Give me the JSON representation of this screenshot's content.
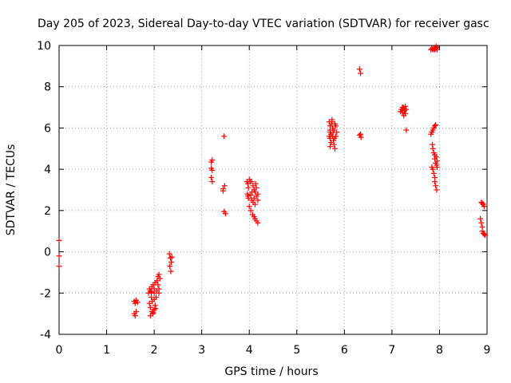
{
  "chart_data": {
    "type": "scatter",
    "title": "Day 205 of 2023, Sidereal Day-to-day VTEC variation (SDTVAR) for receiver gasc",
    "xlabel": "GPS time / hours",
    "ylabel": "SDTVAR / TECUs",
    "xlim": [
      0,
      9
    ],
    "ylim": [
      -4,
      10
    ],
    "xticks": [
      "0",
      "1",
      "2",
      "3",
      "4",
      "5",
      "6",
      "7",
      "8",
      "9"
    ],
    "yticks": [
      "-4",
      "-2",
      "0",
      "2",
      "4",
      "6",
      "8",
      "10"
    ],
    "grid": true,
    "marker": "+",
    "series": [
      {
        "name": "SDTVAR",
        "color": "#ff0000",
        "points": [
          [
            0.0,
            0.55
          ],
          [
            0.0,
            -0.2
          ],
          [
            0.0,
            -0.7
          ],
          [
            1.58,
            -2.4
          ],
          [
            1.6,
            -2.5
          ],
          [
            1.62,
            -2.35
          ],
          [
            1.65,
            -2.45
          ],
          [
            1.58,
            -3.0
          ],
          [
            1.6,
            -3.1
          ],
          [
            1.62,
            -2.9
          ],
          [
            1.88,
            -2.0
          ],
          [
            1.9,
            -1.8
          ],
          [
            1.92,
            -1.9
          ],
          [
            1.94,
            -2.2
          ],
          [
            1.9,
            -2.5
          ],
          [
            1.92,
            -2.7
          ],
          [
            1.95,
            -2.9
          ],
          [
            1.97,
            -3.0
          ],
          [
            1.92,
            -3.1
          ],
          [
            1.95,
            -1.7
          ],
          [
            1.98,
            -1.6
          ],
          [
            2.0,
            -1.8
          ],
          [
            2.0,
            -2.0
          ],
          [
            2.02,
            -1.5
          ],
          [
            2.0,
            -2.3
          ],
          [
            2.02,
            -2.6
          ],
          [
            2.0,
            -2.8
          ],
          [
            1.98,
            -2.95
          ],
          [
            2.04,
            -2.2
          ],
          [
            2.05,
            -1.9
          ],
          [
            2.06,
            -1.4
          ],
          [
            2.08,
            -1.2
          ],
          [
            2.08,
            -1.6
          ],
          [
            2.1,
            -1.8
          ],
          [
            2.1,
            -2.0
          ],
          [
            2.1,
            -1.1
          ],
          [
            2.12,
            -1.3
          ],
          [
            1.96,
            -2.4
          ],
          [
            1.94,
            -1.95
          ],
          [
            2.03,
            -2.75
          ],
          [
            2.32,
            -0.1
          ],
          [
            2.34,
            -0.3
          ],
          [
            2.36,
            -0.5
          ],
          [
            2.33,
            -0.7
          ],
          [
            2.35,
            -0.95
          ],
          [
            2.37,
            -0.25
          ],
          [
            3.2,
            4.35
          ],
          [
            3.22,
            4.45
          ],
          [
            3.2,
            4.05
          ],
          [
            3.22,
            3.95
          ],
          [
            3.2,
            3.6
          ],
          [
            3.22,
            3.4
          ],
          [
            3.45,
            3.05
          ],
          [
            3.48,
            3.2
          ],
          [
            3.45,
            2.95
          ],
          [
            3.47,
            1.95
          ],
          [
            3.5,
            1.85
          ],
          [
            3.47,
            5.6
          ],
          [
            3.95,
            3.4
          ],
          [
            3.97,
            3.3
          ],
          [
            3.98,
            3.1
          ],
          [
            4.0,
            3.5
          ],
          [
            4.02,
            3.4
          ],
          [
            3.96,
            2.8
          ],
          [
            3.98,
            2.6
          ],
          [
            4.0,
            2.2
          ],
          [
            4.03,
            2.0
          ],
          [
            3.97,
            2.7
          ],
          [
            4.05,
            3.4
          ],
          [
            4.08,
            3.2
          ],
          [
            4.1,
            3.0
          ],
          [
            4.12,
            2.9
          ],
          [
            4.15,
            2.7
          ],
          [
            4.05,
            2.5
          ],
          [
            4.08,
            2.4
          ],
          [
            4.1,
            2.6
          ],
          [
            4.06,
            2.9
          ],
          [
            4.13,
            3.3
          ],
          [
            4.15,
            3.1
          ],
          [
            4.18,
            2.8
          ],
          [
            4.18,
            2.5
          ],
          [
            4.12,
            2.3
          ],
          [
            4.07,
            1.8
          ],
          [
            4.1,
            1.7
          ],
          [
            4.12,
            1.6
          ],
          [
            4.15,
            1.5
          ],
          [
            4.18,
            1.4
          ],
          [
            4.03,
            2.75
          ],
          [
            5.68,
            6.3
          ],
          [
            5.7,
            6.1
          ],
          [
            5.7,
            5.9
          ],
          [
            5.72,
            5.7
          ],
          [
            5.7,
            5.5
          ],
          [
            5.72,
            5.3
          ],
          [
            5.7,
            5.1
          ],
          [
            5.68,
            5.6
          ],
          [
            5.7,
            5.8
          ],
          [
            5.73,
            6.2
          ],
          [
            5.74,
            6.3
          ],
          [
            5.75,
            6.0
          ],
          [
            5.76,
            5.8
          ],
          [
            5.75,
            5.6
          ],
          [
            5.77,
            5.4
          ],
          [
            5.78,
            5.2
          ],
          [
            5.8,
            5.0
          ],
          [
            5.78,
            5.9
          ],
          [
            5.8,
            6.2
          ],
          [
            5.82,
            6.1
          ],
          [
            5.84,
            5.8
          ],
          [
            5.82,
            5.6
          ],
          [
            5.74,
            6.4
          ],
          [
            5.79,
            5.5
          ],
          [
            6.32,
            8.85
          ],
          [
            6.34,
            8.65
          ],
          [
            6.32,
            5.65
          ],
          [
            6.35,
            5.55
          ],
          [
            6.34,
            5.7
          ],
          [
            7.18,
            6.8
          ],
          [
            7.2,
            6.9
          ],
          [
            7.22,
            6.75
          ],
          [
            7.24,
            7.0
          ],
          [
            7.26,
            6.85
          ],
          [
            7.28,
            6.7
          ],
          [
            7.3,
            6.9
          ],
          [
            7.28,
            7.05
          ],
          [
            7.22,
            7.0
          ],
          [
            7.25,
            6.6
          ],
          [
            7.3,
            5.9
          ],
          [
            7.82,
            9.8
          ],
          [
            7.84,
            9.85
          ],
          [
            7.86,
            9.8
          ],
          [
            7.88,
            9.85
          ],
          [
            7.9,
            9.8
          ],
          [
            7.92,
            9.85
          ],
          [
            7.94,
            9.9
          ],
          [
            7.95,
            9.8
          ],
          [
            7.93,
            9.95
          ],
          [
            7.82,
            5.7
          ],
          [
            7.84,
            5.8
          ],
          [
            7.86,
            5.9
          ],
          [
            7.88,
            6.0
          ],
          [
            7.9,
            6.1
          ],
          [
            7.92,
            6.15
          ],
          [
            7.85,
            5.2
          ],
          [
            7.86,
            5.0
          ],
          [
            7.88,
            4.8
          ],
          [
            7.9,
            4.7
          ],
          [
            7.9,
            4.5
          ],
          [
            7.92,
            4.3
          ],
          [
            7.94,
            4.2
          ],
          [
            7.95,
            4.4
          ],
          [
            7.93,
            4.6
          ],
          [
            7.95,
            4.1
          ],
          [
            7.86,
            4.0
          ],
          [
            7.88,
            3.8
          ],
          [
            7.9,
            3.6
          ],
          [
            7.9,
            3.4
          ],
          [
            7.92,
            3.2
          ],
          [
            7.94,
            3.0
          ],
          [
            7.84,
            4.1
          ],
          [
            8.88,
            2.4
          ],
          [
            8.9,
            2.35
          ],
          [
            8.92,
            2.3
          ],
          [
            8.94,
            2.2
          ],
          [
            8.86,
            1.6
          ],
          [
            8.88,
            1.4
          ],
          [
            8.9,
            1.2
          ],
          [
            8.9,
            1.0
          ],
          [
            8.92,
            0.9
          ],
          [
            8.94,
            0.85
          ],
          [
            8.96,
            0.8
          ]
        ]
      }
    ]
  }
}
